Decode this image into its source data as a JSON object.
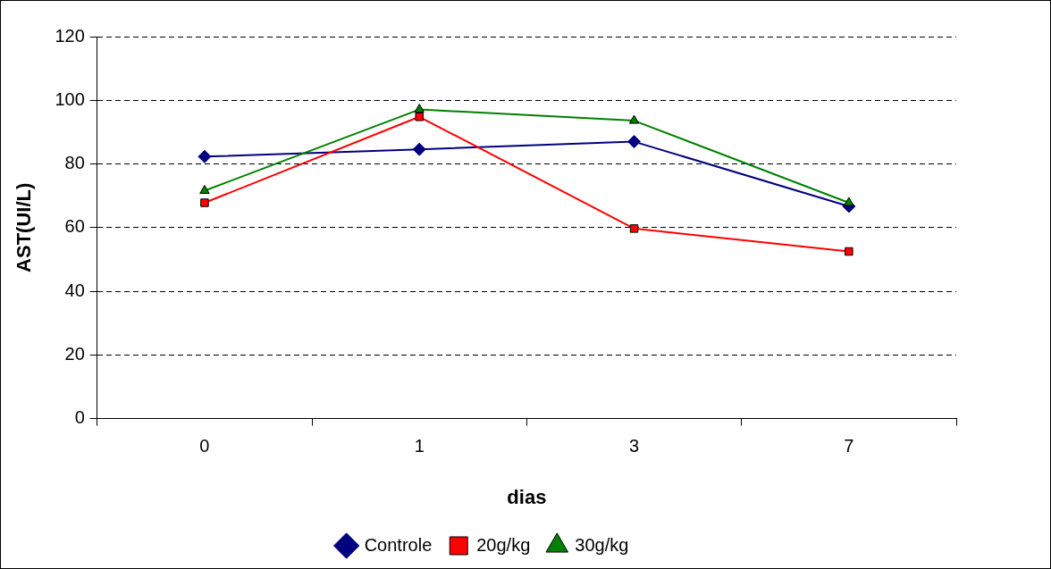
{
  "chart_data": {
    "type": "line",
    "xlabel": "dias",
    "ylabel": "AST(UI/L)",
    "categories": [
      "0",
      "1",
      "3",
      "7"
    ],
    "series": [
      {
        "name": "Controle",
        "color": "#000080",
        "marker": "diamond",
        "values": [
          82.3,
          84.6,
          87,
          66.7
        ]
      },
      {
        "name": "20g/kg",
        "color": "#ff0000",
        "marker": "square",
        "values": [
          67.8,
          94.8,
          59.7,
          52.5
        ]
      },
      {
        "name": "30g/kg",
        "color": "#008000",
        "marker": "triangle",
        "values": [
          71.6,
          97.1,
          93.6,
          67.8
        ]
      }
    ],
    "ylim": [
      0,
      120
    ],
    "yticks": [
      0,
      20,
      40,
      60,
      80,
      100,
      120
    ],
    "grid": "y",
    "legend": "bottom",
    "line_style": "solid"
  }
}
